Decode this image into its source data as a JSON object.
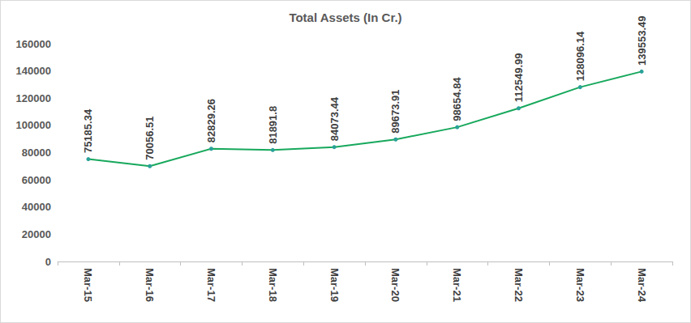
{
  "chart_data": {
    "type": "line",
    "title": "Total Assets (In Cr.)",
    "categories": [
      "Mar-15",
      "Mar-16",
      "Mar-17",
      "Mar-18",
      "Mar-19",
      "Mar-20",
      "Mar-21",
      "Mar-22",
      "Mar-23",
      "Mar-24"
    ],
    "values": [
      75185.34,
      70056.51,
      82829.26,
      81891.8,
      84073.44,
      89673.91,
      98654.84,
      112549.99,
      128096.14,
      139553.49
    ],
    "color": "#17a85c",
    "marker": "circle",
    "ylim": [
      0,
      160000
    ],
    "yticks": [
      0,
      20000,
      40000,
      60000,
      80000,
      100000,
      120000,
      140000,
      160000
    ],
    "grid": false,
    "data_labels": true
  }
}
